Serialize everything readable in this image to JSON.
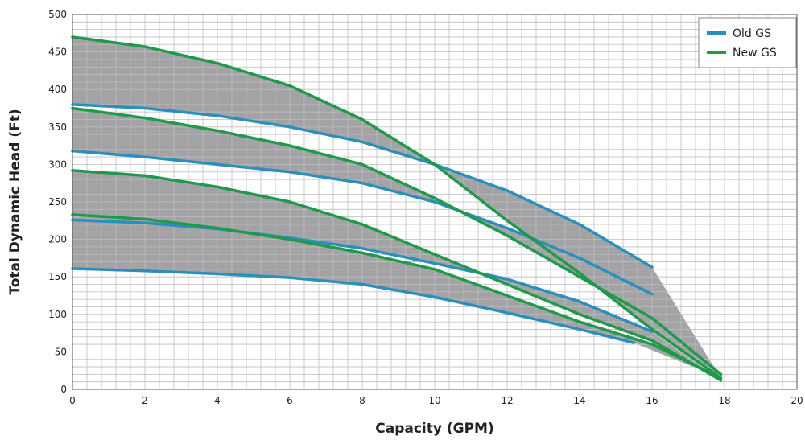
{
  "chart_data": {
    "type": "line",
    "xlabel": "Capacity (GPM)",
    "ylabel": "Total Dynamic Head (Ft)",
    "xlim": [
      0,
      20
    ],
    "ylim": [
      0,
      500
    ],
    "x_ticks": [
      0,
      2,
      4,
      6,
      8,
      10,
      12,
      14,
      16,
      18,
      20
    ],
    "y_ticks": [
      0,
      50,
      100,
      150,
      200,
      250,
      300,
      350,
      400,
      450,
      500
    ],
    "grid": true,
    "legend_position": "top-right",
    "colors": {
      "old": "#2a8fbd",
      "new": "#1f9a4a",
      "fill": "#a3a3a6",
      "grid": "#bdbdbd"
    },
    "legend": [
      {
        "label": "Old GS",
        "group": "old"
      },
      {
        "label": "New GS",
        "group": "new"
      }
    ],
    "series": [
      {
        "group": "old",
        "x": [
          0,
          2,
          4,
          6,
          8,
          10,
          12,
          14,
          16
        ],
        "y": [
          380,
          375,
          365,
          350,
          330,
          300,
          265,
          220,
          163
        ]
      },
      {
        "group": "old",
        "x": [
          0,
          2,
          4,
          6,
          8,
          10,
          12,
          14,
          16
        ],
        "y": [
          318,
          310,
          300,
          290,
          275,
          250,
          215,
          175,
          127
        ]
      },
      {
        "group": "old",
        "x": [
          0,
          2,
          4,
          6,
          8,
          10,
          12,
          14,
          16
        ],
        "y": [
          226,
          222,
          214,
          202,
          188,
          168,
          147,
          117,
          77
        ]
      },
      {
        "group": "old",
        "x": [
          0,
          2,
          4,
          6,
          8,
          10,
          12,
          14,
          15.5
        ],
        "y": [
          161,
          158,
          154,
          149,
          140,
          123,
          102,
          80,
          62
        ]
      },
      {
        "group": "new",
        "x": [
          0,
          2,
          4,
          6,
          8,
          10,
          12,
          14,
          16,
          17.9
        ],
        "y": [
          470,
          457,
          435,
          405,
          360,
          300,
          225,
          155,
          80,
          15
        ]
      },
      {
        "group": "new",
        "x": [
          0,
          2,
          4,
          6,
          8,
          10,
          12,
          14,
          16,
          17.9
        ],
        "y": [
          375,
          362,
          345,
          325,
          300,
          255,
          205,
          150,
          95,
          20
        ]
      },
      {
        "group": "new",
        "x": [
          0,
          2,
          4,
          6,
          8,
          10,
          12,
          14,
          16,
          17.9
        ],
        "y": [
          292,
          285,
          270,
          250,
          220,
          180,
          140,
          100,
          65,
          12
        ]
      },
      {
        "group": "new",
        "x": [
          0,
          2,
          4,
          6,
          8,
          10,
          12,
          14,
          16,
          17.9
        ],
        "y": [
          233,
          227,
          215,
          200,
          182,
          160,
          125,
          90,
          60,
          15
        ]
      }
    ],
    "shaded_bands": [
      {
        "upper": 4,
        "lower": 0
      },
      {
        "upper": 5,
        "lower": 1
      },
      {
        "upper": 6,
        "lower": 2
      },
      {
        "upper": 7,
        "lower": 3
      }
    ]
  }
}
